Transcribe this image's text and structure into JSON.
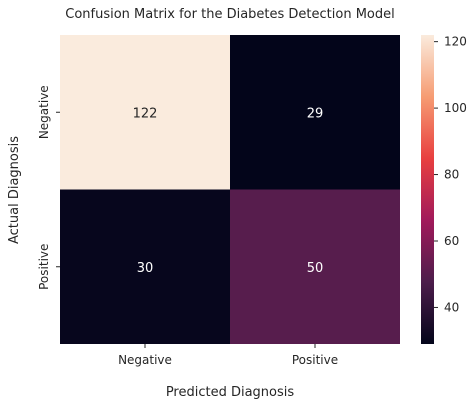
{
  "chart_data": {
    "type": "heatmap",
    "title": "Confusion Matrix for the Diabetes Detection Model",
    "xlabel": "Predicted Diagnosis",
    "ylabel": "Actual Diagnosis",
    "x_categories": [
      "Negative",
      "Positive"
    ],
    "y_categories": [
      "Negative",
      "Positive"
    ],
    "values": [
      [
        122,
        29
      ],
      [
        30,
        50
      ]
    ],
    "colorbar": {
      "ticks": [
        40,
        60,
        80,
        100,
        120
      ],
      "range": [
        29,
        122
      ],
      "colormap": "rocket",
      "colors": [
        "#03051a",
        "#4c1d4b",
        "#a11a5b",
        "#e83f3f",
        "#f69c73",
        "#faebdd"
      ]
    },
    "annotation_colors": {
      "dark_cell_text": "#ffffff",
      "light_cell_text": "#262626"
    }
  }
}
